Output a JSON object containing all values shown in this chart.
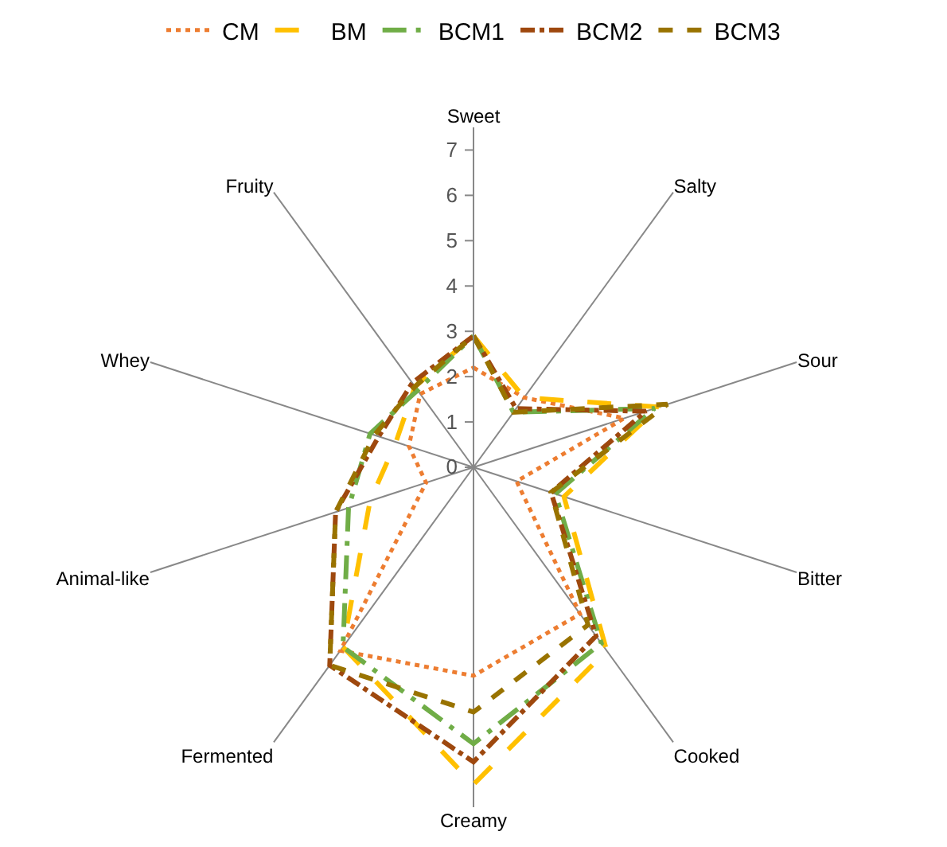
{
  "chart_data": {
    "type": "radar",
    "categories": [
      "Sweet",
      "Salty",
      "Sour",
      "Bitter",
      "Cooked",
      "Creamy",
      "Fermented",
      "Animal-like",
      "Whey",
      "Fruity"
    ],
    "series": [
      {
        "name": "CM",
        "color": "#ed7d31",
        "line_style": "dotted",
        "values": [
          2.2,
          1.9,
          3.5,
          1.0,
          4.0,
          4.6,
          5.0,
          1.1,
          1.5,
          2.0
        ]
      },
      {
        "name": "BM",
        "color": "#ffc000",
        "line_style": "dashed",
        "values": [
          2.9,
          1.9,
          4.3,
          2.1,
          5.0,
          7.0,
          4.9,
          2.4,
          1.8,
          2.2
        ]
      },
      {
        "name": "BCM1",
        "color": "#70ad47",
        "line_style": "dashed",
        "values": [
          2.9,
          1.5,
          4.2,
          1.9,
          4.8,
          6.1,
          4.9,
          2.9,
          2.4,
          2.1
        ]
      },
      {
        "name": "BCM2",
        "color": "#9e480e",
        "line_style": "dashed",
        "values": [
          2.9,
          1.6,
          4.0,
          1.8,
          4.6,
          6.5,
          5.4,
          3.2,
          2.2,
          2.3
        ]
      },
      {
        "name": "BCM3",
        "color": "#997300",
        "line_style": "dashed",
        "values": [
          2.9,
          1.5,
          4.5,
          1.8,
          4.3,
          5.4,
          5.4,
          3.2,
          2.3,
          2.2
        ]
      }
    ],
    "ylim": [
      0,
      7.5
    ],
    "yticks": [
      0,
      1,
      2,
      3,
      4,
      5,
      6,
      7
    ],
    "grid": "x",
    "legend": "top"
  }
}
